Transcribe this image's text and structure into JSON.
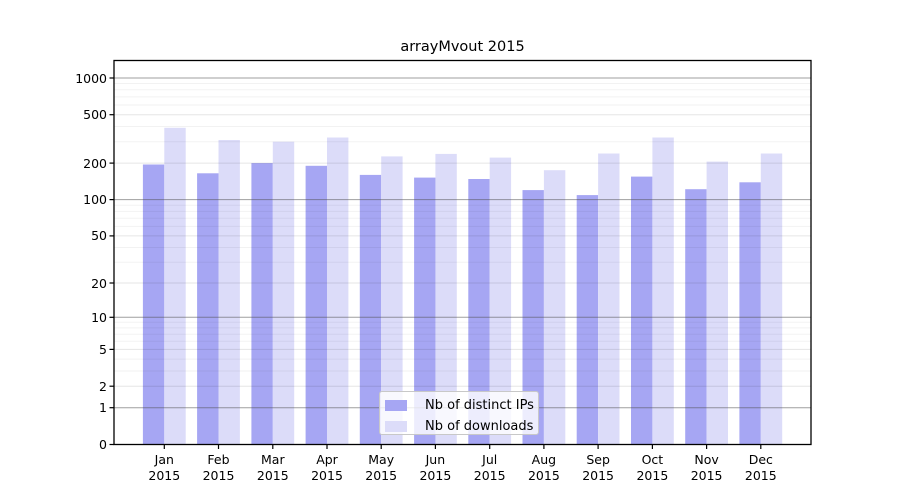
{
  "figure": {
    "background": "#ffffff"
  },
  "chart_data": {
    "type": "bar",
    "title": "arrayMvout 2015",
    "x_tick_months": [
      "Jan",
      "Feb",
      "Mar",
      "Apr",
      "May",
      "Jun",
      "Jul",
      "Aug",
      "Sep",
      "Oct",
      "Nov",
      "Dec"
    ],
    "x_tick_year": "2015",
    "yscale": "log(value+1)",
    "yticks": [
      0,
      1,
      2,
      5,
      10,
      20,
      50,
      100,
      200,
      500,
      1000
    ],
    "ylim": [
      0,
      1390
    ],
    "grid": "horizontal major and minor gridlines, drawn over bars",
    "legend_position": "inside bottom-center",
    "series": [
      {
        "key": "distinct-ips",
        "name": "Nb of distinct IPs",
        "color": "#a6a6f3",
        "values": [
          195,
          165,
          200,
          190,
          160,
          152,
          148,
          120,
          109,
          155,
          122,
          139
        ]
      },
      {
        "key": "downloads",
        "name": "Nb of downloads",
        "color": "#dcdcf9",
        "values": [
          390,
          310,
          300,
          325,
          227,
          238,
          222,
          175,
          240,
          325,
          206,
          240
        ]
      }
    ],
    "grid_colors": {
      "decade": "rgba(80,80,80,0.55)",
      "major": "rgba(0,0,0,0.10)",
      "minor": "rgba(0,0,0,0.05)"
    },
    "decade_gridlines": [
      1,
      10,
      100,
      1000
    ],
    "mid_gridlines": [
      2,
      5,
      20,
      50,
      200,
      500
    ],
    "minor_gridlines": [
      3,
      4,
      6,
      7,
      8,
      9,
      30,
      40,
      60,
      70,
      80,
      90,
      300,
      400,
      600,
      700,
      800,
      900
    ],
    "axis_color": "#000000"
  }
}
